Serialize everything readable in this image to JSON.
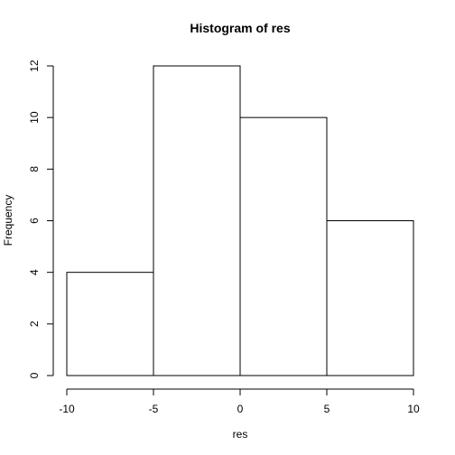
{
  "chart_data": {
    "type": "bar",
    "title": "Histogram of res",
    "xlabel": "res",
    "ylabel": "Frequency",
    "bins": [
      {
        "start": -10,
        "end": -5,
        "count": 4
      },
      {
        "start": -5,
        "end": 0,
        "count": 12
      },
      {
        "start": 0,
        "end": 5,
        "count": 10
      },
      {
        "start": 5,
        "end": 10,
        "count": 6
      }
    ],
    "xlim": [
      -10,
      10
    ],
    "ylim": [
      0,
      12
    ],
    "xticks": [
      -10,
      -5,
      0,
      5,
      10
    ],
    "yticks": [
      0,
      2,
      4,
      6,
      8,
      10,
      12
    ],
    "grid": false,
    "colors": {
      "bar_fill": "#ffffff",
      "bar_stroke": "#000000"
    }
  }
}
